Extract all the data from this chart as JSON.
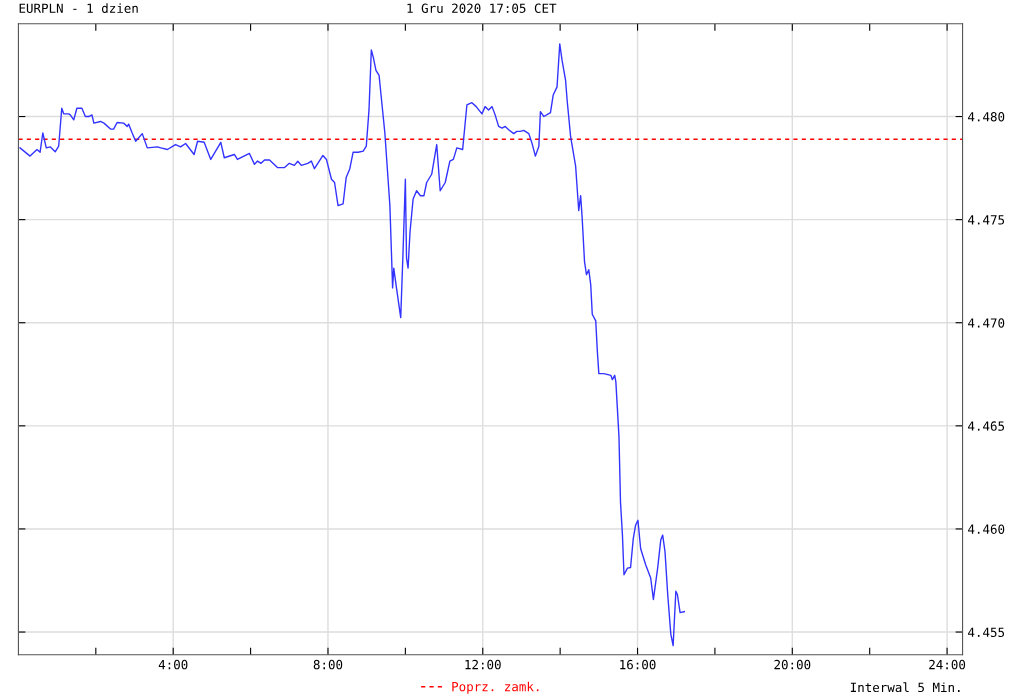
{
  "chart_data": {
    "type": "line",
    "title": "EURPLN - 1 dzien",
    "subtitle": "1 Gru 2020 17:05 CET",
    "annotations": [
      "Interwal 5 Min."
    ],
    "legend": "bottom",
    "grid": true,
    "marker": "none",
    "line_style": "solid",
    "xlim": [
      0,
      24.4
    ],
    "ylim": [
      4.4539,
      4.4845
    ],
    "xticks": [
      {
        "value": 2,
        "label": null
      },
      {
        "value": 4,
        "label": "4:00"
      },
      {
        "value": 6,
        "label": null
      },
      {
        "value": 8,
        "label": "8:00"
      },
      {
        "value": 10,
        "label": null
      },
      {
        "value": 12,
        "label": "12:00"
      },
      {
        "value": 14,
        "label": null
      },
      {
        "value": 16,
        "label": "16:00"
      },
      {
        "value": 18,
        "label": null
      },
      {
        "value": 20,
        "label": "20:00"
      },
      {
        "value": 22,
        "label": null
      },
      {
        "value": 24,
        "label": "24:00"
      }
    ],
    "yticks": [
      {
        "value": 4.455,
        "label": "4.455"
      },
      {
        "value": 4.46,
        "label": "4.460"
      },
      {
        "value": 4.465,
        "label": "4.465"
      },
      {
        "value": 4.47,
        "label": "4.470"
      },
      {
        "value": 4.475,
        "label": "4.475"
      },
      {
        "value": 4.48,
        "label": "4.480"
      }
    ],
    "ref_lines": [
      {
        "axis": "y",
        "value": 4.4789,
        "label": "Poprz. zamk.",
        "color": "#ff0000",
        "line_style": "dashed"
      }
    ],
    "series": [
      {
        "color": "#3333ff",
        "x": [
          0.04,
          0.3,
          0.48,
          0.56,
          0.63,
          0.72,
          0.82,
          0.95,
          1.04,
          1.12,
          1.17,
          1.3,
          1.34,
          1.43,
          1.51,
          1.64,
          1.73,
          1.82,
          1.9,
          1.95,
          2.12,
          2.21,
          2.38,
          2.46,
          2.55,
          2.72,
          2.81,
          2.85,
          2.94,
          3.03,
          3.2,
          3.33,
          3.59,
          3.68,
          3.85,
          4.06,
          4.19,
          4.32,
          4.54,
          4.63,
          4.8,
          4.97,
          5.23,
          5.32,
          5.58,
          5.66,
          5.97,
          6.1,
          6.18,
          6.27,
          6.36,
          6.49,
          6.7,
          6.87,
          7.0,
          7.13,
          7.22,
          7.31,
          7.48,
          7.57,
          7.65,
          7.87,
          7.96,
          8.09,
          8.17,
          8.26,
          8.39,
          8.47,
          8.56,
          8.65,
          8.78,
          8.91,
          8.99,
          9.06,
          9.12,
          9.17,
          9.24,
          9.32,
          9.47,
          9.6,
          9.67,
          9.7,
          9.77,
          9.88,
          9.94,
          10.0,
          10.03,
          10.07,
          10.12,
          10.2,
          10.29,
          10.39,
          10.48,
          10.55,
          10.68,
          10.81,
          10.9,
          11.03,
          11.15,
          11.24,
          11.33,
          11.48,
          11.59,
          11.72,
          11.83,
          11.98,
          12.06,
          12.15,
          12.24,
          12.32,
          12.41,
          12.5,
          12.58,
          12.67,
          12.8,
          12.88,
          12.97,
          13.06,
          13.19,
          13.27,
          13.36,
          13.45,
          13.49,
          13.58,
          13.75,
          13.82,
          13.92,
          13.99,
          14.05,
          14.14,
          14.18,
          14.27,
          14.4,
          14.48,
          14.53,
          14.57,
          14.63,
          14.68,
          14.74,
          14.79,
          14.83,
          14.92,
          14.96,
          15.0,
          15.13,
          15.31,
          15.35,
          15.41,
          15.44,
          15.52,
          15.56,
          15.61,
          15.65,
          15.74,
          15.82,
          15.89,
          15.95,
          16.01,
          16.08,
          16.21,
          16.34,
          16.41,
          16.52,
          16.6,
          16.65,
          16.71,
          16.78,
          16.86,
          16.92,
          16.99,
          17.03,
          17.1,
          17.21
        ],
        "values": [
          4.47848,
          4.47808,
          4.4784,
          4.47827,
          4.4792,
          4.47848,
          4.47853,
          4.47829,
          4.47856,
          4.4804,
          4.48013,
          4.48013,
          4.48008,
          4.47984,
          4.4804,
          4.4804,
          4.48,
          4.48,
          4.48008,
          4.47968,
          4.47976,
          4.47968,
          4.47939,
          4.47939,
          4.47971,
          4.47968,
          4.47952,
          4.47963,
          4.4792,
          4.4788,
          4.47917,
          4.47848,
          4.47853,
          4.47848,
          4.4784,
          4.47864,
          4.47853,
          4.47869,
          4.47816,
          4.4788,
          4.47875,
          4.47792,
          4.47875,
          4.478,
          4.47816,
          4.47792,
          4.47821,
          4.47768,
          4.47784,
          4.47773,
          4.47789,
          4.47789,
          4.47752,
          4.47752,
          4.47773,
          4.47763,
          4.47783,
          4.47763,
          4.47773,
          4.47784,
          4.47747,
          4.47811,
          4.47792,
          4.47696,
          4.4768,
          4.47568,
          4.47576,
          4.47704,
          4.47744,
          4.47827,
          4.47827,
          4.47832,
          4.47856,
          4.48032,
          4.48323,
          4.48288,
          4.48224,
          4.482,
          4.4792,
          4.47568,
          4.47169,
          4.47265,
          4.47169,
          4.47025,
          4.47344,
          4.47696,
          4.47313,
          4.47265,
          4.4744,
          4.476,
          4.4764,
          4.47616,
          4.47616,
          4.4768,
          4.4772,
          4.47864,
          4.4764,
          4.4768,
          4.47784,
          4.47792,
          4.47848,
          4.4784,
          4.48056,
          4.48067,
          4.48048,
          4.48013,
          4.48048,
          4.48032,
          4.48048,
          4.48008,
          4.47952,
          4.47944,
          4.47952,
          4.47936,
          4.47917,
          4.47928,
          4.47928,
          4.47933,
          4.47917,
          4.47872,
          4.47808,
          4.47856,
          4.48024,
          4.48,
          4.48019,
          4.48104,
          4.48144,
          4.48352,
          4.48272,
          4.48176,
          4.4808,
          4.47904,
          4.4776,
          4.47544,
          4.47616,
          4.47505,
          4.47296,
          4.47233,
          4.47257,
          4.47185,
          4.47041,
          4.47009,
          4.46865,
          4.46753,
          4.46753,
          4.46745,
          4.46724,
          4.46745,
          4.46713,
          4.46449,
          4.46129,
          4.4597,
          4.45778,
          4.4581,
          4.45813,
          4.45953,
          4.46018,
          4.46042,
          4.45905,
          4.45826,
          4.45762,
          4.45658,
          4.4581,
          4.45946,
          4.4597,
          4.4589,
          4.45682,
          4.4549,
          4.45434,
          4.45698,
          4.45682,
          4.45594,
          4.45599
        ]
      }
    ]
  }
}
